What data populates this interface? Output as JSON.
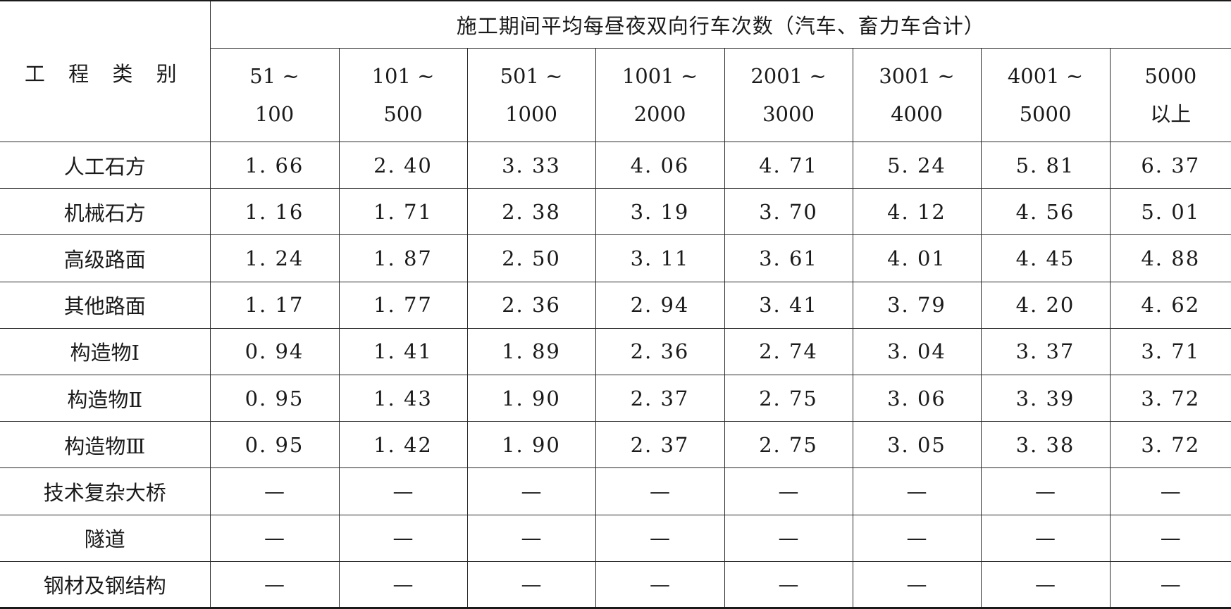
{
  "table": {
    "category_header": "工 程 类 别",
    "group_header": "施工期间平均每昼夜双向行车次数（汽车、畜力车合计）",
    "columns": [
      {
        "line1": "51 ~",
        "line2": "100"
      },
      {
        "line1": "101 ~",
        "line2": "500"
      },
      {
        "line1": "501 ~",
        "line2": "1000"
      },
      {
        "line1": "1001 ~",
        "line2": "2000"
      },
      {
        "line1": "2001 ~",
        "line2": "3000"
      },
      {
        "line1": "3001 ~",
        "line2": "4000"
      },
      {
        "line1": "4001 ~",
        "line2": "5000"
      },
      {
        "line1": "5000",
        "line2": "以上"
      }
    ],
    "rows": [
      {
        "label": "人工石方",
        "values": [
          "1. 66",
          "2. 40",
          "3. 33",
          "4. 06",
          "4. 71",
          "5. 24",
          "5. 81",
          "6. 37"
        ]
      },
      {
        "label": "机械石方",
        "values": [
          "1. 16",
          "1. 71",
          "2. 38",
          "3. 19",
          "3. 70",
          "4. 12",
          "4. 56",
          "5. 01"
        ]
      },
      {
        "label": "高级路面",
        "values": [
          "1. 24",
          "1. 87",
          "2. 50",
          "3. 11",
          "3. 61",
          "4. 01",
          "4. 45",
          "4. 88"
        ]
      },
      {
        "label": "其他路面",
        "values": [
          "1. 17",
          "1. 77",
          "2. 36",
          "2. 94",
          "3. 41",
          "3. 79",
          "4. 20",
          "4. 62"
        ]
      },
      {
        "label": "构造物Ⅰ",
        "values": [
          "0. 94",
          "1. 41",
          "1. 89",
          "2. 36",
          "2. 74",
          "3. 04",
          "3. 37",
          "3. 71"
        ]
      },
      {
        "label": "构造物Ⅱ",
        "values": [
          "0. 95",
          "1. 43",
          "1. 90",
          "2. 37",
          "2. 75",
          "3. 06",
          "3. 39",
          "3. 72"
        ]
      },
      {
        "label": "构造物Ⅲ",
        "values": [
          "0. 95",
          "1. 42",
          "1. 90",
          "2. 37",
          "2. 75",
          "3. 05",
          "3. 38",
          "3. 72"
        ]
      },
      {
        "label": "技术复杂大桥",
        "values": [
          "—",
          "—",
          "—",
          "—",
          "—",
          "—",
          "—",
          "—"
        ]
      },
      {
        "label": "隧道",
        "values": [
          "—",
          "—",
          "—",
          "—",
          "—",
          "—",
          "—",
          "—"
        ]
      },
      {
        "label": "钢材及钢结构",
        "values": [
          "—",
          "—",
          "—",
          "—",
          "—",
          "—",
          "—",
          "—"
        ]
      }
    ]
  }
}
